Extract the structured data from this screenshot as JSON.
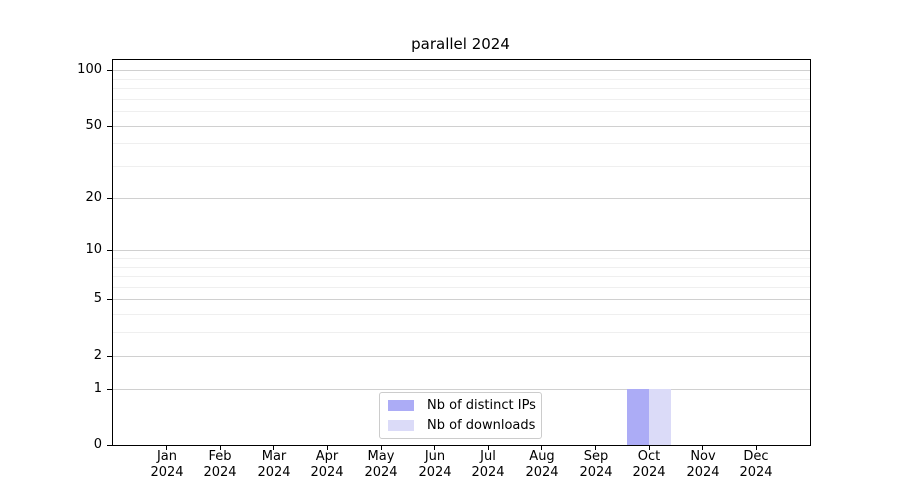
{
  "title": "parallel 2024",
  "chart_data": {
    "type": "bar",
    "title": "parallel 2024",
    "categories": [
      "Jan 2024",
      "Feb 2024",
      "Mar 2024",
      "Apr 2024",
      "May 2024",
      "Jun 2024",
      "Jul 2024",
      "Aug 2024",
      "Sep 2024",
      "Oct 2024",
      "Nov 2024",
      "Dec 2024"
    ],
    "series": [
      {
        "name": "Nb of distinct IPs",
        "color": "#acacf6",
        "values": [
          0,
          0,
          0,
          0,
          0,
          0,
          0,
          0,
          0,
          1,
          0,
          0
        ]
      },
      {
        "name": "Nb of downloads",
        "color": "#dbdbf8",
        "values": [
          0,
          0,
          0,
          0,
          0,
          0,
          0,
          0,
          0,
          1,
          0,
          0
        ]
      }
    ],
    "xlabel": "",
    "ylabel": "",
    "yscale": "log1p",
    "ylim": [
      0,
      113.6
    ],
    "y_major_ticks": [
      100,
      50,
      20,
      10,
      5,
      2,
      1,
      0
    ],
    "y_minor_ticks": [
      90,
      80,
      70,
      60,
      40,
      30,
      9,
      8,
      7,
      6,
      4,
      3
    ],
    "grid": "horizontal",
    "legend": {
      "position": "lower center inside",
      "items": [
        "Nb of distinct IPs",
        "Nb of downloads"
      ]
    },
    "colors": {
      "axis": "#000000",
      "grid_major": "#d0d0d0",
      "grid_minor": "#efefef",
      "legend_border": "#cccccc"
    }
  }
}
